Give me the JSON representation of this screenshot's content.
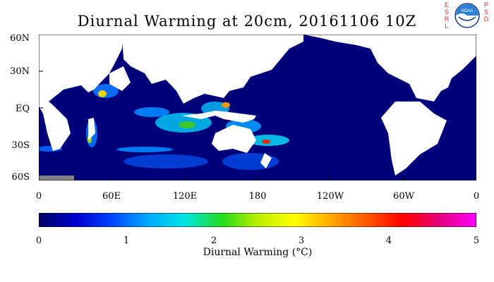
{
  "title": "Diurnal Warming at 20cm, 20161106 10Z",
  "logos": {
    "left_text": [
      "E",
      "S",
      "R",
      "L"
    ],
    "right_text": [
      "P",
      "S",
      "D"
    ],
    "noaa_text": "NOAA"
  },
  "latitude_labels": [
    "60N",
    "30N",
    "EQ",
    "30S",
    "60S"
  ],
  "longitude_labels": [
    "0",
    "60E",
    "120E",
    "180",
    "120W",
    "60W",
    "0"
  ],
  "colorbar": {
    "tick_labels": [
      "0",
      "1",
      "2",
      "3",
      "4",
      "5"
    ],
    "title": "Diurnal Warming (°C)",
    "colors": [
      "#000066",
      "#0000cc",
      "#0044ff",
      "#00aaff",
      "#00e5e5",
      "#22dd22",
      "#bbee00",
      "#ffff00",
      "#ffaa00",
      "#ff5500",
      "#ff0000",
      "#e6007e",
      "#ff00ff"
    ]
  },
  "map_colors": {
    "ocean": "#00007a",
    "land": "#ffffff",
    "antarctica": "#808080"
  }
}
